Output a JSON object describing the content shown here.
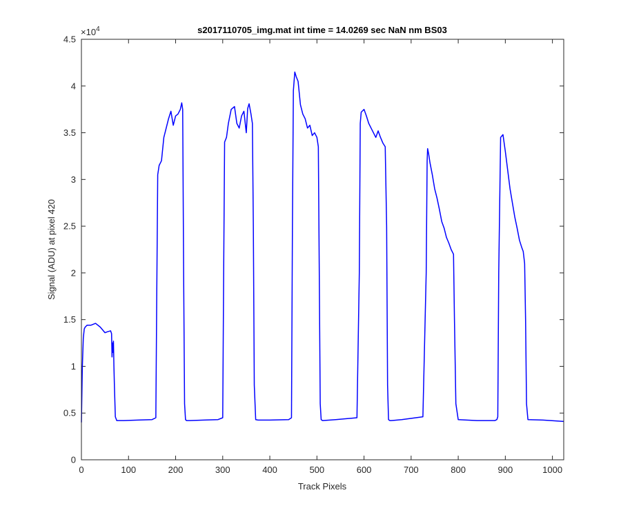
{
  "chart_data": {
    "type": "line",
    "title": "s2017110705_img.mat int time = 14.0269 sec  NaN nm BS03",
    "xlabel": "Track Pixels",
    "ylabel": "Signal (ADU) at pixel 420",
    "xlim": [
      0,
      1024
    ],
    "ylim": [
      0,
      45000
    ],
    "exponent_label": "×10",
    "exponent_power": "4",
    "x_ticks": [
      0,
      100,
      200,
      300,
      400,
      500,
      600,
      700,
      800,
      900,
      1000
    ],
    "x_tick_labels": [
      "0",
      "100",
      "200",
      "300",
      "400",
      "500",
      "600",
      "700",
      "800",
      "900",
      "1000"
    ],
    "y_ticks": [
      0,
      5000,
      10000,
      15000,
      20000,
      25000,
      30000,
      35000,
      40000,
      45000
    ],
    "y_tick_labels": [
      "0",
      "0.5",
      "1",
      "1.5",
      "2",
      "2.5",
      "3",
      "3.5",
      "4",
      "4.5"
    ],
    "grid": false,
    "line_color": "#0000ff",
    "series": [
      {
        "x": [
          0,
          2,
          4,
          6,
          8,
          12,
          20,
          30,
          40,
          50,
          55,
          62,
          64,
          65,
          66,
          67,
          68,
          69,
          70,
          72,
          75,
          90,
          120,
          150,
          158,
          160,
          162,
          165,
          170,
          175,
          180,
          185,
          190,
          195,
          200,
          205,
          210,
          213,
          215,
          217,
          219,
          221,
          223,
          225,
          230,
          260,
          290,
          300,
          302,
          304,
          308,
          312,
          318,
          325,
          330,
          335,
          340,
          345,
          350,
          353,
          356,
          360,
          363,
          365,
          367,
          370,
          375,
          400,
          440,
          446,
          448,
          450,
          453,
          456,
          460,
          465,
          470,
          475,
          480,
          485,
          490,
          495,
          500,
          503,
          505,
          507,
          509,
          512,
          540,
          585,
          590,
          592,
          594,
          596,
          600,
          605,
          610,
          615,
          620,
          625,
          630,
          635,
          640,
          645,
          648,
          650,
          652,
          655,
          658,
          680,
          725,
          732,
          734,
          735,
          737,
          740,
          745,
          750,
          755,
          760,
          765,
          770,
          775,
          780,
          785,
          790,
          792,
          795,
          800,
          840,
          878,
          882,
          884,
          886,
          890,
          895,
          900,
          905,
          910,
          915,
          920,
          925,
          930,
          935,
          938,
          941,
          943,
          945,
          948,
          980,
          1024
        ],
        "y": [
          4000,
          10000,
          13000,
          14000,
          14200,
          14400,
          14400,
          14600,
          14200,
          13600,
          13700,
          13800,
          13500,
          11000,
          12500,
          11500,
          12700,
          10000,
          8000,
          4600,
          4200,
          4200,
          4250,
          4300,
          4500,
          18000,
          30500,
          31500,
          32000,
          34500,
          35500,
          36500,
          37300,
          35800,
          36800,
          37000,
          37500,
          38200,
          37500,
          20000,
          6000,
          4300,
          4200,
          4200,
          4200,
          4250,
          4300,
          4500,
          20000,
          34000,
          34500,
          36000,
          37500,
          37800,
          36000,
          35500,
          36800,
          37300,
          35000,
          37600,
          38100,
          37000,
          36000,
          25000,
          8000,
          4300,
          4250,
          4250,
          4300,
          4500,
          25000,
          39500,
          41500,
          41000,
          40500,
          38000,
          37000,
          36500,
          35500,
          35800,
          34700,
          35000,
          34500,
          33500,
          20000,
          6000,
          4300,
          4200,
          4300,
          4500,
          20000,
          36000,
          37200,
          37300,
          37500,
          36800,
          36000,
          35500,
          35000,
          34500,
          35200,
          34500,
          33900,
          33500,
          25000,
          8000,
          4300,
          4200,
          4200,
          4300,
          4600,
          20000,
          32000,
          33300,
          32800,
          31800,
          30500,
          29000,
          28000,
          26800,
          25500,
          24800,
          23800,
          23200,
          22500,
          22000,
          15000,
          6000,
          4300,
          4200,
          4200,
          4300,
          4600,
          20000,
          34500,
          34800,
          33000,
          31000,
          29000,
          27500,
          26000,
          24800,
          23500,
          22700,
          22300,
          21000,
          15000,
          6000,
          4300,
          4250,
          4100
        ]
      }
    ]
  }
}
